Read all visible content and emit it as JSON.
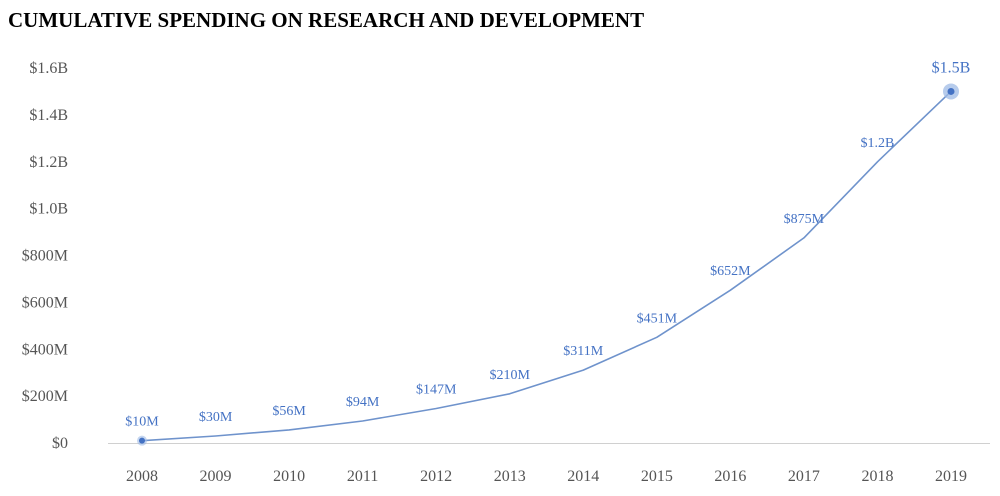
{
  "chart_data": {
    "type": "line",
    "title": "CUMULATIVE SPENDING ON RESEARCH AND DEVELOPMENT",
    "xlabel": "",
    "ylabel": "",
    "categories": [
      "2008",
      "2009",
      "2010",
      "2011",
      "2012",
      "2013",
      "2014",
      "2015",
      "2016",
      "2017",
      "2018",
      "2019"
    ],
    "values": [
      10,
      30,
      56,
      94,
      147,
      210,
      311,
      451,
      652,
      875,
      1200,
      1500
    ],
    "value_unit": "millions USD",
    "data_labels": [
      "$10M",
      "$30M",
      "$56M",
      "$94M",
      "$147M",
      "$210M",
      "$311M",
      "$451M",
      "$652M",
      "$875M",
      "$1.2B",
      "$1.5B"
    ],
    "ylim": [
      0,
      1600
    ],
    "y_ticks": [
      {
        "value": 0,
        "label": "$0"
      },
      {
        "value": 200,
        "label": "$200M"
      },
      {
        "value": 400,
        "label": "$400M"
      },
      {
        "value": 600,
        "label": "$600M"
      },
      {
        "value": 800,
        "label": "$800M"
      },
      {
        "value": 1000,
        "label": "$1.0B"
      },
      {
        "value": 1200,
        "label": "$1.2B"
      },
      {
        "value": 1400,
        "label": "$1.4B"
      },
      {
        "value": 1600,
        "label": "$1.6B"
      }
    ],
    "grid": false,
    "legend": "none",
    "highlighted_points": [
      "first",
      "last"
    ],
    "colors": {
      "line": "#6f93cc",
      "label": "#4472c4",
      "marker": "#4472c4",
      "marker_halo": "#9fbbe6",
      "axis": "#d0d0d0",
      "tick_text": "#555555",
      "title": "#000000"
    }
  }
}
